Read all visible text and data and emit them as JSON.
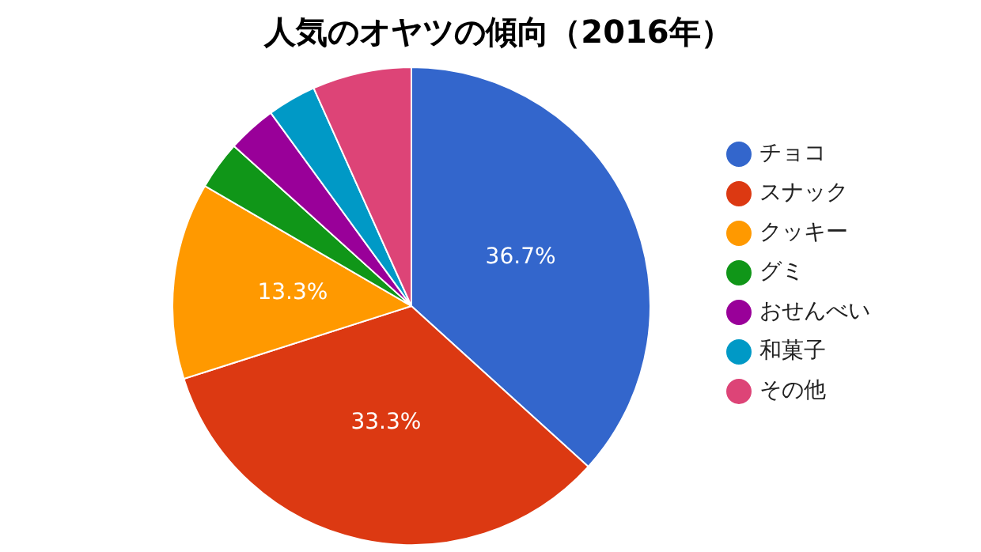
{
  "chart_data": {
    "type": "pie",
    "title": "人気のオヤツの傾向（2016年）",
    "categories": [
      "チョコ",
      "スナック",
      "クッキー",
      "グミ",
      "おせんべい",
      "和菓子",
      "その他"
    ],
    "values": [
      36.7,
      33.3,
      13.3,
      3.3,
      3.3,
      3.3,
      6.7
    ],
    "colors": [
      "#3366cc",
      "#dc3912",
      "#ff9900",
      "#109618",
      "#990099",
      "#0099c6",
      "#dd4477"
    ],
    "value_labels": [
      "36.7%",
      "33.3%",
      "13.3%",
      null,
      null,
      null,
      null
    ],
    "legend": "right"
  }
}
